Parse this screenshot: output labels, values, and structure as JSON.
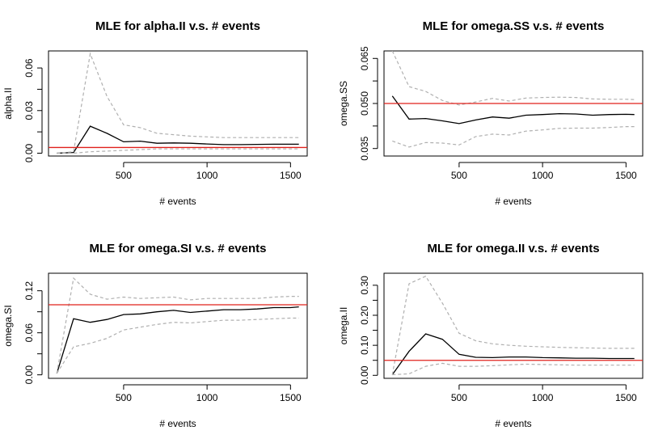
{
  "chart_data": [
    {
      "type": "line",
      "title": "MLE for alpha.II v.s. # events",
      "xlabel": "# events",
      "ylabel": "alpha.II",
      "xlim": [
        50,
        1600
      ],
      "ylim": [
        -0.002,
        0.072
      ],
      "x_ticks": [
        500,
        1000,
        1500
      ],
      "x_tick_labels": [
        "500",
        "1000",
        "1500"
      ],
      "y_ticks": [
        0.0,
        0.03,
        0.06
      ],
      "y_tick_labels": [
        "0.00",
        "0.03",
        "0.06"
      ],
      "true_value": 0.004,
      "x": [
        100,
        200,
        300,
        400,
        500,
        600,
        700,
        800,
        900,
        1000,
        1100,
        1200,
        1300,
        1400,
        1500,
        1550
      ],
      "series": [
        {
          "name": "estimate",
          "values": [
            0.0,
            0.0005,
            0.019,
            0.014,
            0.008,
            0.0085,
            0.007,
            0.0072,
            0.007,
            0.0065,
            0.006,
            0.006,
            0.0062,
            0.0063,
            0.0063,
            0.0063
          ]
        },
        {
          "name": "upper",
          "values": [
            0.0,
            0.001,
            0.07,
            0.04,
            0.02,
            0.018,
            0.014,
            0.013,
            0.012,
            0.0115,
            0.011,
            0.011,
            0.011,
            0.011,
            0.011,
            0.011
          ]
        },
        {
          "name": "lower",
          "values": [
            0.0,
            0.0,
            0.001,
            0.0015,
            0.002,
            0.0025,
            0.003,
            0.003,
            0.003,
            0.003,
            0.003,
            0.003,
            0.003,
            0.003,
            0.003,
            0.003
          ]
        }
      ]
    },
    {
      "type": "line",
      "title": "MLE for omega.SS v.s. # events",
      "xlabel": "# events",
      "ylabel": "omega.SS",
      "xlim": [
        50,
        1600
      ],
      "ylim": [
        0.0325,
        0.0675
      ],
      "x_ticks": [
        500,
        1000,
        1500
      ],
      "x_tick_labels": [
        "500",
        "1000",
        "1500"
      ],
      "y_ticks": [
        0.035,
        0.05,
        0.065
      ],
      "y_tick_labels": [
        "0.035",
        "0.050",
        "0.065"
      ],
      "true_value": 0.05,
      "x": [
        100,
        200,
        300,
        400,
        500,
        600,
        700,
        800,
        900,
        1000,
        1100,
        1200,
        1300,
        1400,
        1500,
        1550
      ],
      "series": [
        {
          "name": "estimate",
          "values": [
            0.0525,
            0.0448,
            0.045,
            0.0442,
            0.0433,
            0.0445,
            0.0455,
            0.0451,
            0.0461,
            0.0463,
            0.0466,
            0.0465,
            0.0461,
            0.0463,
            0.0464,
            0.0463
          ]
        },
        {
          "name": "upper",
          "values": [
            0.0675,
            0.0556,
            0.054,
            0.051,
            0.0495,
            0.0505,
            0.0517,
            0.0508,
            0.0518,
            0.052,
            0.0521,
            0.052,
            0.0515,
            0.0514,
            0.0514,
            0.0513
          ]
        },
        {
          "name": "lower",
          "values": [
            0.0375,
            0.0355,
            0.037,
            0.0368,
            0.0362,
            0.039,
            0.0398,
            0.0395,
            0.0408,
            0.0412,
            0.0417,
            0.0418,
            0.0418,
            0.042,
            0.0423,
            0.0423
          ]
        }
      ]
    },
    {
      "type": "line",
      "title": "MLE for omega.SI v.s. # events",
      "xlabel": "# events",
      "ylabel": "omega.SI",
      "xlim": [
        50,
        1600
      ],
      "ylim": [
        -0.005,
        0.145
      ],
      "x_ticks": [
        500,
        1000,
        1500
      ],
      "x_tick_labels": [
        "500",
        "1000",
        "1500"
      ],
      "y_ticks": [
        0.0,
        0.06,
        0.12
      ],
      "y_tick_labels": [
        "0.00",
        "0.06",
        "0.12"
      ],
      "true_value": 0.1,
      "x": [
        100,
        200,
        300,
        400,
        500,
        600,
        700,
        800,
        900,
        1000,
        1100,
        1200,
        1300,
        1400,
        1500,
        1550
      ],
      "series": [
        {
          "name": "estimate",
          "values": [
            0.002,
            0.08,
            0.075,
            0.079,
            0.086,
            0.087,
            0.09,
            0.092,
            0.089,
            0.091,
            0.093,
            0.093,
            0.094,
            0.096,
            0.096,
            0.097
          ]
        },
        {
          "name": "upper",
          "values": [
            0.002,
            0.138,
            0.115,
            0.108,
            0.111,
            0.109,
            0.11,
            0.111,
            0.107,
            0.109,
            0.109,
            0.109,
            0.109,
            0.111,
            0.112,
            0.112
          ]
        },
        {
          "name": "lower",
          "values": [
            0.002,
            0.04,
            0.045,
            0.052,
            0.064,
            0.068,
            0.072,
            0.075,
            0.074,
            0.076,
            0.078,
            0.078,
            0.079,
            0.08,
            0.081,
            0.081
          ]
        }
      ]
    },
    {
      "type": "line",
      "title": "MLE for omega.II v.s. # events",
      "xlabel": "# events",
      "ylabel": "omega.II",
      "xlim": [
        50,
        1600
      ],
      "ylim": [
        -0.01,
        0.34
      ],
      "x_ticks": [
        500,
        1000,
        1500
      ],
      "x_tick_labels": [
        "500",
        "1000",
        "1500"
      ],
      "y_ticks": [
        0.0,
        0.1,
        0.2,
        0.3
      ],
      "y_tick_labels": [
        "0.00",
        "0.10",
        "0.20",
        "0.30"
      ],
      "true_value": 0.05,
      "x": [
        100,
        200,
        300,
        400,
        500,
        600,
        700,
        800,
        900,
        1000,
        1100,
        1200,
        1300,
        1400,
        1500,
        1550
      ],
      "series": [
        {
          "name": "estimate",
          "values": [
            0.002,
            0.08,
            0.138,
            0.12,
            0.07,
            0.06,
            0.059,
            0.061,
            0.061,
            0.059,
            0.058,
            0.057,
            0.057,
            0.056,
            0.056,
            0.056
          ]
        },
        {
          "name": "upper",
          "values": [
            0.002,
            0.305,
            0.33,
            0.24,
            0.14,
            0.115,
            0.105,
            0.1,
            0.097,
            0.095,
            0.093,
            0.092,
            0.091,
            0.09,
            0.09,
            0.09
          ]
        },
        {
          "name": "lower",
          "values": [
            0.002,
            0.005,
            0.03,
            0.04,
            0.03,
            0.03,
            0.032,
            0.035,
            0.037,
            0.036,
            0.035,
            0.034,
            0.034,
            0.034,
            0.034,
            0.034
          ]
        }
      ]
    }
  ]
}
